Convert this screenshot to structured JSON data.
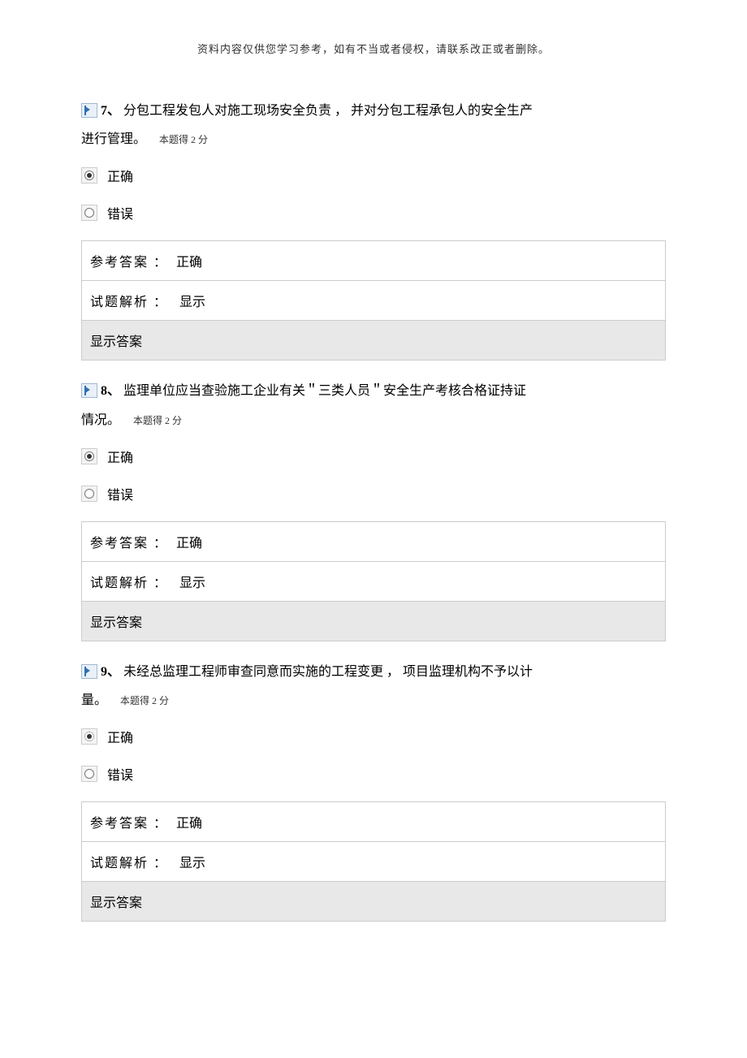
{
  "header_note": "资料内容仅供您学习参考，如有不当或者侵权，请联系改正或者删除。",
  "questions": [
    {
      "number": "7、",
      "text_part1": "分包工程发包人对施工现场安全负责 ",
      "text_part2": "， 并对分包工程承包人的安全生产",
      "text_line2": "进行管理。",
      "score_note": "本题得  2 分",
      "option_true": "正确",
      "option_false": "错误",
      "selected_index": 0,
      "selected_dotted": false
    },
    {
      "number": "8、",
      "text_part1": "监理单位应当查验施工企业有关＂三类人员＂安全生产考核合格证持证",
      "text_part2": "",
      "text_line2": "情况。",
      "score_note": "本题得  2 分",
      "option_true": "正确",
      "option_false": "错误",
      "selected_index": 0,
      "selected_dotted": false
    },
    {
      "number": "9、",
      "text_part1": "未经总监理工程师审查同意而实施的工程变更 ",
      "text_part2": "， 项目监理机构不予以计",
      "text_line2": "量。",
      "score_note": "本题得  2 分",
      "option_true": "正确",
      "option_false": "错误",
      "selected_index": 0,
      "selected_dotted": true
    }
  ],
  "answer_section": {
    "ref_label": "参考答案 ：",
    "ref_value": "正确",
    "analysis_label": "试题解析 ：",
    "analysis_link": "显示",
    "show_answer": "显示答案"
  }
}
